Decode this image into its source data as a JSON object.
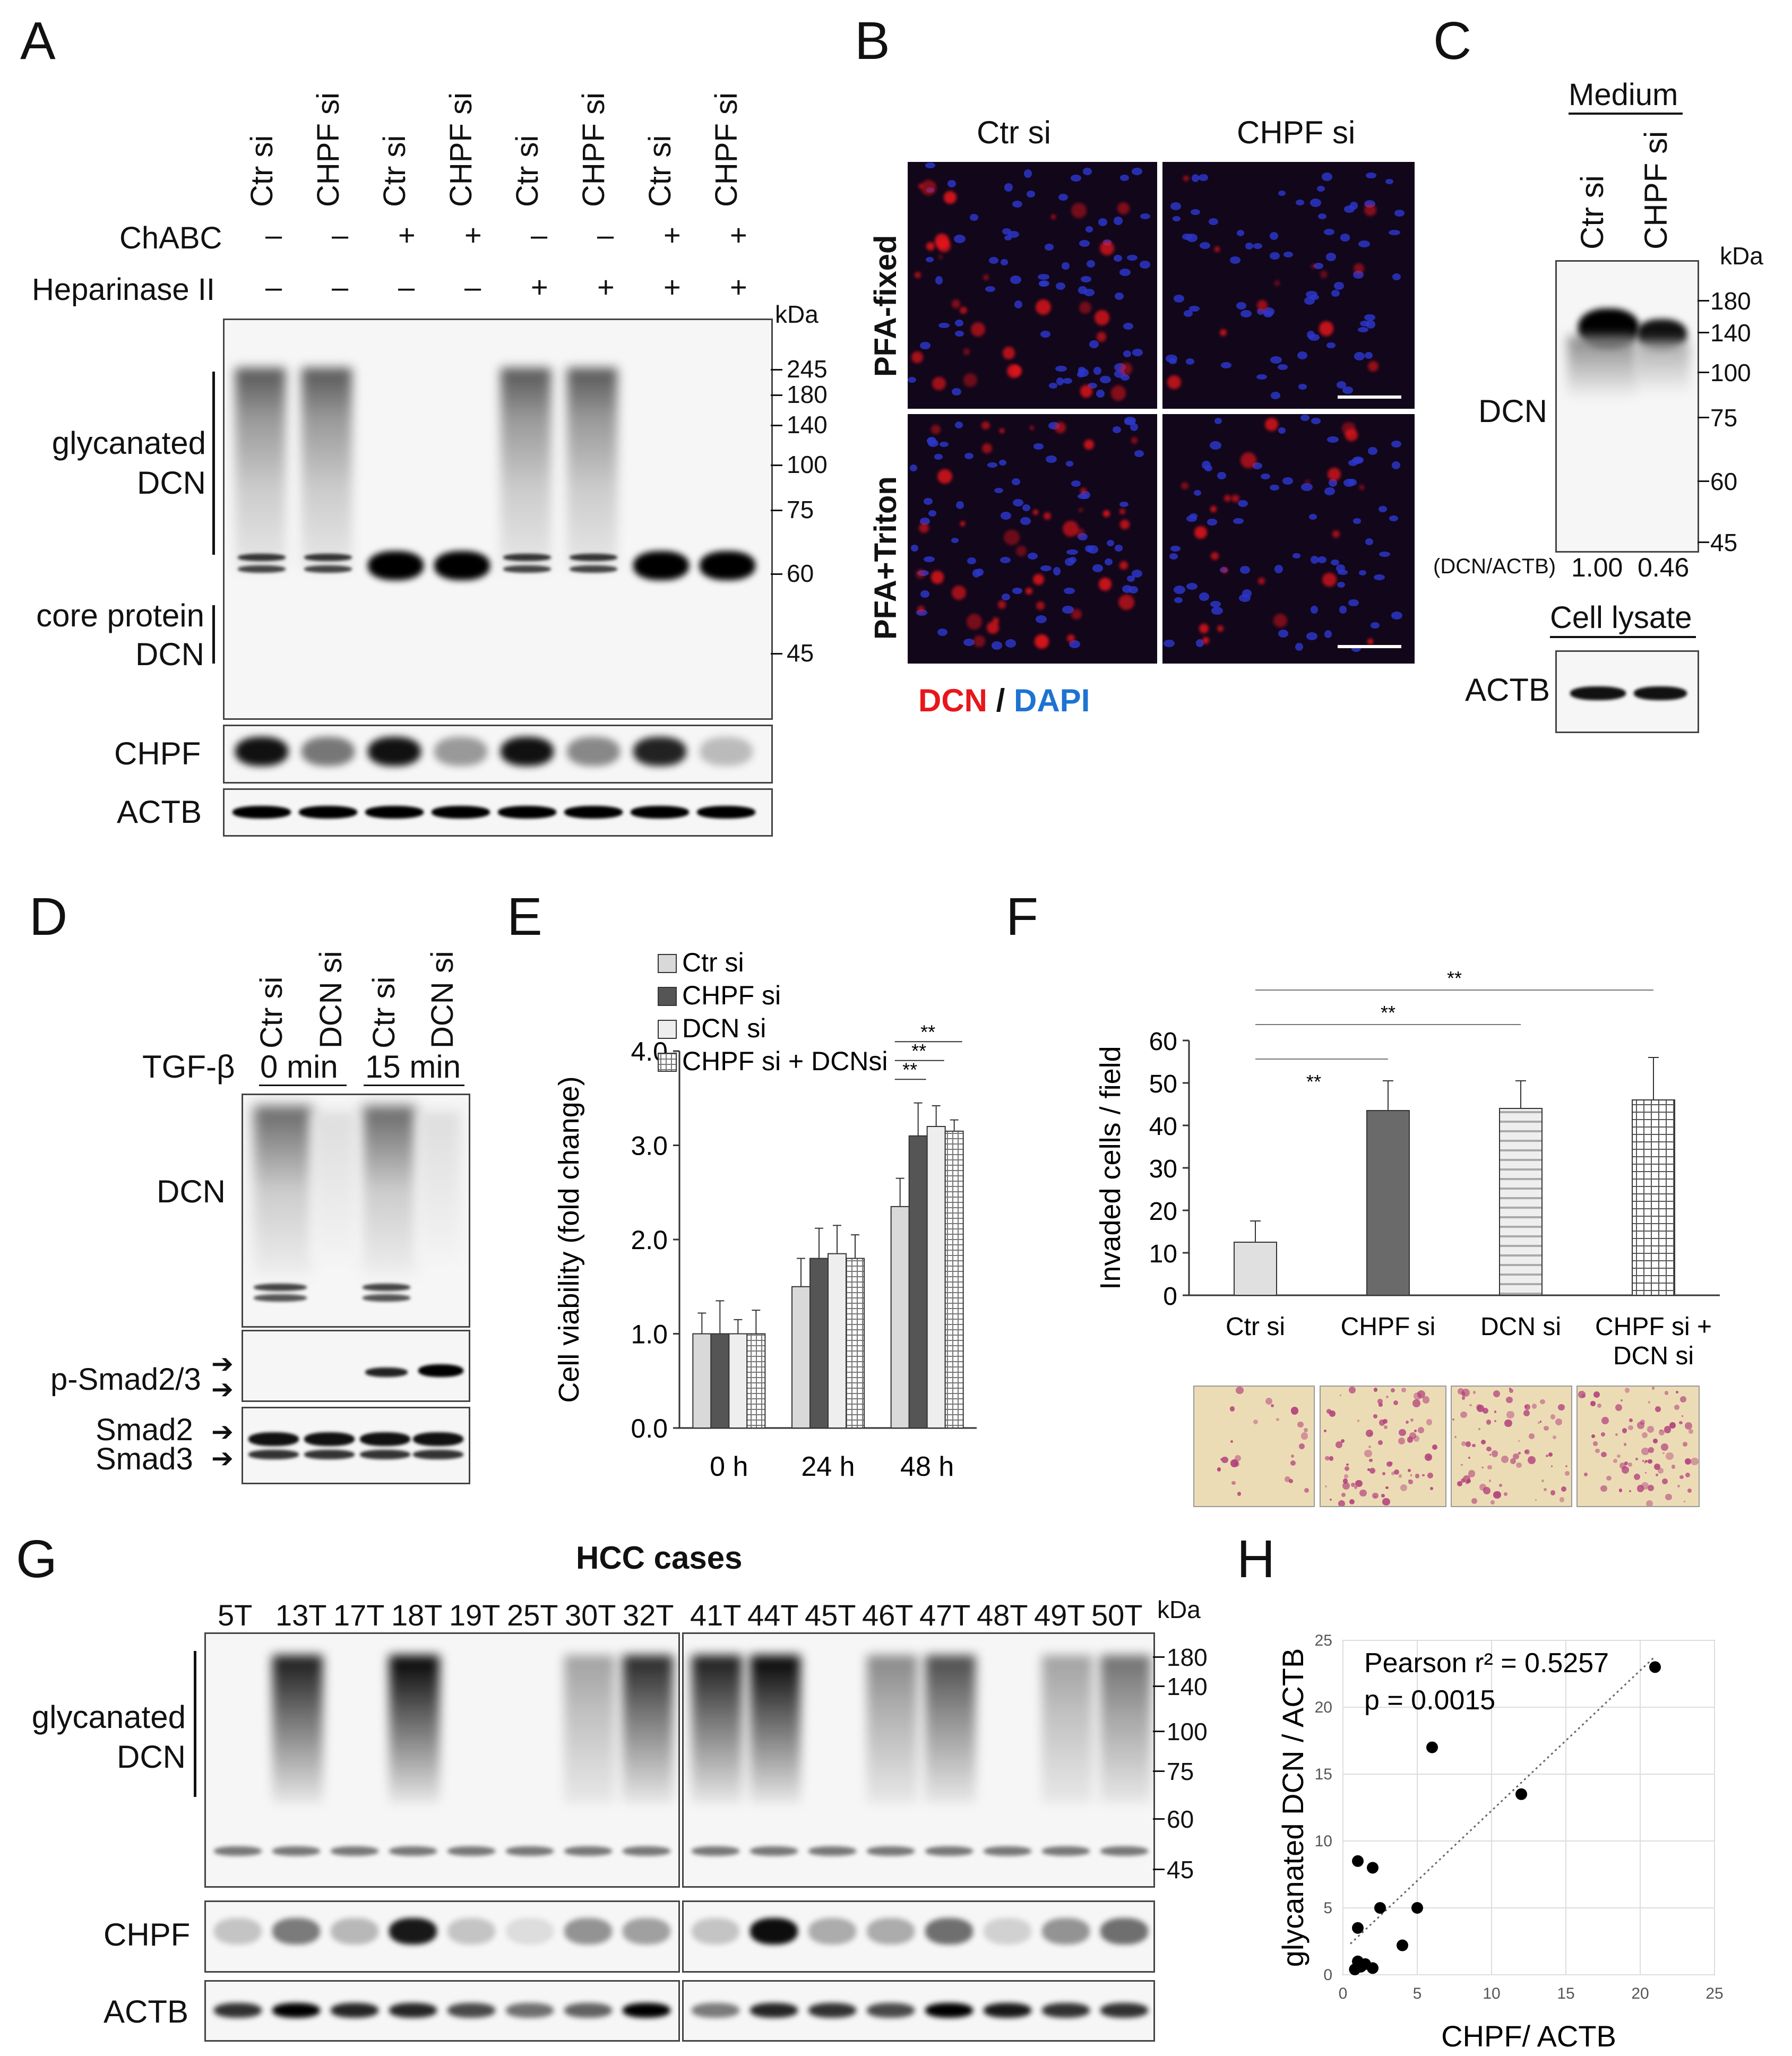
{
  "panels": {
    "A": "A",
    "B": "B",
    "C": "C",
    "D": "D",
    "E": "E",
    "F": "F",
    "G": "G",
    "H": "H"
  },
  "A": {
    "lanes": [
      "Ctr si",
      "CHPF si",
      "Ctr si",
      "CHPF si",
      "Ctr si",
      "CHPF si",
      "Ctr si",
      "CHPF si"
    ],
    "chabc_label": "ChABC",
    "chabc": [
      "–",
      "–",
      "+",
      "+",
      "–",
      "–",
      "+",
      "+"
    ],
    "hep_label": "Heparinase II",
    "hep": [
      "–",
      "–",
      "–",
      "–",
      "+",
      "+",
      "+",
      "+"
    ],
    "kda_title": "kDa",
    "markers": [
      "245",
      "180",
      "140",
      "100",
      "75",
      "60",
      "45"
    ],
    "glycanated_label": [
      "glycanated",
      "DCN"
    ],
    "core_label": [
      "core protein",
      "DCN"
    ],
    "chpf_label": "CHPF",
    "actb_label": "ACTB"
  },
  "B": {
    "cols": [
      "Ctr si",
      "CHPF si"
    ],
    "rows": [
      "PFA-fixed",
      "PFA+Triton"
    ],
    "legend_dcn": "DCN",
    "legend_sep": " / ",
    "legend_dapi": "DAPI",
    "dcn_color": "#e8161b",
    "dapi_color": "#1e73d1"
  },
  "C": {
    "header": "Medium",
    "lanes": [
      "Ctr si",
      "CHPF si"
    ],
    "kda_title": "kDa",
    "markers": [
      "180",
      "140",
      "100",
      "75",
      "60",
      "45"
    ],
    "dcn_label": "DCN",
    "ratio_label": "(DCN/ACTB)",
    "ratios": [
      "1.00",
      "0.46"
    ],
    "lysate_header": "Cell lysate",
    "actb_label": "ACTB"
  },
  "D": {
    "lanes": [
      "Ctr si",
      "DCN si",
      "Ctr si",
      "DCN si"
    ],
    "tgf_label": "TGF-β",
    "times": [
      "0 min",
      "15 min"
    ],
    "dcn_label": "DCN",
    "psmad_label": "p-Smad2/3",
    "smad2_label": "Smad2",
    "smad3_label": "Smad3"
  },
  "chart_data": [
    {
      "panel": "E",
      "type": "bar",
      "ylabel": "Cell viability (fold change)",
      "ylim": [
        0,
        4.0
      ],
      "yticks": [
        "0.0",
        "1.0",
        "2.0",
        "3.0",
        "4.0"
      ],
      "categories": [
        "0 h",
        "24 h",
        "48 h"
      ],
      "series": [
        {
          "name": "Ctr si",
          "values": [
            1.0,
            1.5,
            2.35
          ],
          "errors": [
            0.22,
            0.3,
            0.3
          ]
        },
        {
          "name": "CHPF si",
          "values": [
            1.0,
            1.8,
            3.1
          ],
          "errors": [
            0.35,
            0.32,
            0.35
          ]
        },
        {
          "name": "DCN si",
          "values": [
            1.0,
            1.85,
            3.2
          ],
          "errors": [
            0.15,
            0.3,
            0.22
          ]
        },
        {
          "name": "CHPF si + DCNsi",
          "values": [
            1.0,
            1.8,
            3.15
          ],
          "errors": [
            0.25,
            0.25,
            0.12
          ]
        }
      ],
      "significance": [
        "**",
        "**",
        "**"
      ]
    },
    {
      "panel": "F",
      "type": "bar",
      "ylabel": "Invaded cells / field",
      "ylim": [
        0,
        60
      ],
      "yticks": [
        "0",
        "10",
        "20",
        "30",
        "40",
        "50",
        "60"
      ],
      "categories": [
        "Ctr si",
        "CHPF si",
        "DCN si",
        "CHPF si +\nDCN si"
      ],
      "values": [
        12.5,
        43.5,
        44.0,
        46.0
      ],
      "errors": [
        5.0,
        7.0,
        6.5,
        10.0
      ],
      "significance": [
        "**",
        "**",
        "**"
      ]
    },
    {
      "panel": "H",
      "type": "scatter",
      "xlabel": "CHPF/ ACTB",
      "ylabel": "glycanated DCN / ACTB",
      "xlim": [
        0,
        25
      ],
      "ylim": [
        0,
        25
      ],
      "xticks": [
        "0",
        "5",
        "10",
        "15",
        "20",
        "25"
      ],
      "yticks": [
        "0",
        "5",
        "10",
        "15",
        "20",
        "25"
      ],
      "annotation_r2": "Pearson r² = 0.5257",
      "annotation_p": "p = 0.0015",
      "x": [
        21,
        6,
        12,
        1,
        2,
        2.5,
        5,
        4,
        1,
        1,
        1.5,
        2,
        0.8,
        1.2
      ],
      "y": [
        23,
        17,
        13.5,
        8.5,
        8,
        5,
        5,
        2.2,
        3.5,
        1,
        0.8,
        0.5,
        0.4,
        0.6
      ]
    }
  ],
  "G": {
    "title": "HCC cases",
    "cases_left": [
      "5T",
      "13T",
      "17T",
      "18T",
      "19T",
      "25T",
      "30T",
      "32T"
    ],
    "cases_right": [
      "41T",
      "44T",
      "45T",
      "46T",
      "47T",
      "48T",
      "49T",
      "50T"
    ],
    "kda_title": "kDa",
    "markers": [
      "180",
      "140",
      "100",
      "75",
      "60",
      "45"
    ],
    "glycanated_label": [
      "glycanated",
      "DCN"
    ],
    "chpf_label": "CHPF",
    "actb_label": "ACTB"
  }
}
